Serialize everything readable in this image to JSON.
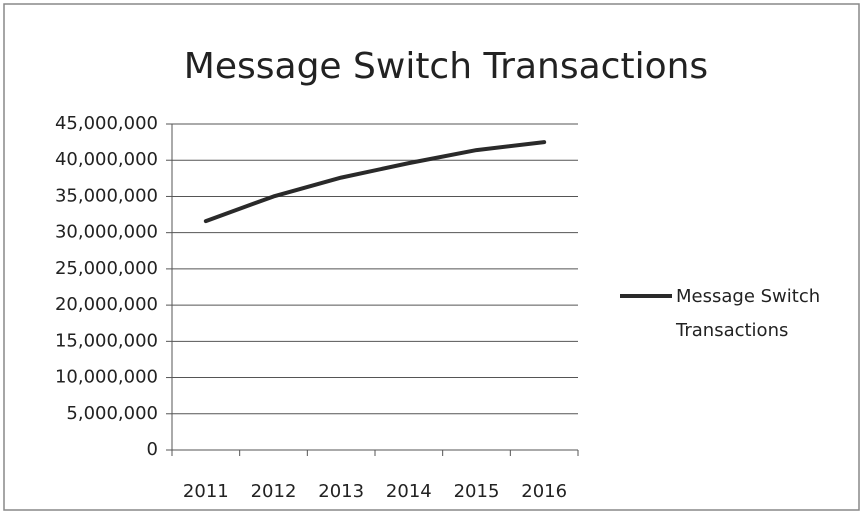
{
  "chart_data": {
    "type": "line",
    "title": "Message Switch Transactions",
    "categories": [
      "2011",
      "2012",
      "2013",
      "2014",
      "2015",
      "2016"
    ],
    "series": [
      {
        "name": "Message Switch Transactions",
        "color": "#2a2a2a",
        "values": [
          31600000,
          35000000,
          37600000,
          39600000,
          41400000,
          42500000
        ]
      }
    ],
    "ylim": [
      0,
      45000000
    ],
    "yticks": [
      0,
      {
        "value": 5000000,
        "label": "5,000,000"
      },
      {
        "value": 10000000,
        "label": "10,000,000"
      },
      {
        "value": 15000000,
        "label": "15,000,000"
      },
      {
        "value": 20000000,
        "label": "20,000,000"
      },
      {
        "value": 25000000,
        "label": "25,000,000"
      },
      {
        "value": 30000000,
        "label": "30,000,000"
      },
      {
        "value": 35000000,
        "label": "35,000,000"
      },
      {
        "value": 40000000,
        "label": "40,000,000"
      },
      {
        "value": 45000000,
        "label": "45,000,000"
      }
    ],
    "grid": true,
    "legend": "right"
  }
}
